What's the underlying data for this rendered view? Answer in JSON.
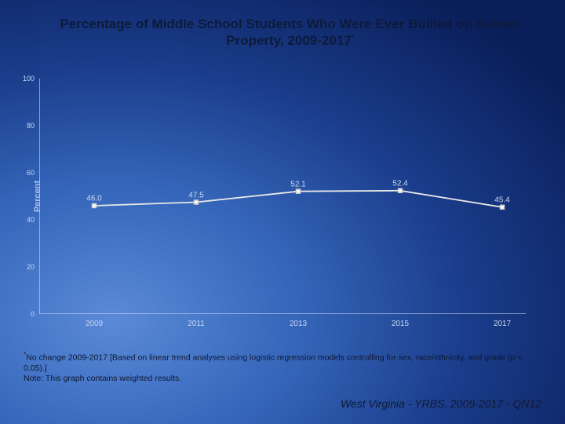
{
  "title_line1": "Percentage of Middle School Students Who Were Ever Bullied on School",
  "title_line2": "Property, 2009-2017",
  "title_dagger": "*",
  "chart": {
    "type": "line",
    "ylabel": "Percent",
    "ylim": [
      0,
      100
    ],
    "ytick_step": 20,
    "yticks": [
      0,
      20,
      40,
      60,
      80,
      100
    ],
    "categories": [
      "2009",
      "2011",
      "2013",
      "2015",
      "2017"
    ],
    "series": {
      "values": [
        46.0,
        47.5,
        52.1,
        52.4,
        45.4
      ],
      "line_color": "#e8e8e8",
      "marker_fill": "#ffffff",
      "marker_stroke": "#d0d0d0",
      "marker_size": 5
    },
    "axis_color": "#c8d8f0",
    "text_color": "#c8d8f0",
    "label_fontsize": 10,
    "tick_fontsize": 9
  },
  "footnote_text": "No change 2009-2017 [Based on linear trend analyses using logistic regression models controlling for sex, race/ethnicity, and grade (p < 0.05).]",
  "footnote_note": "Note: This graph contains weighted results.",
  "footnote_dagger": "*",
  "source_text": "West Virginia - YRBS, 2009-2017 - QN12"
}
